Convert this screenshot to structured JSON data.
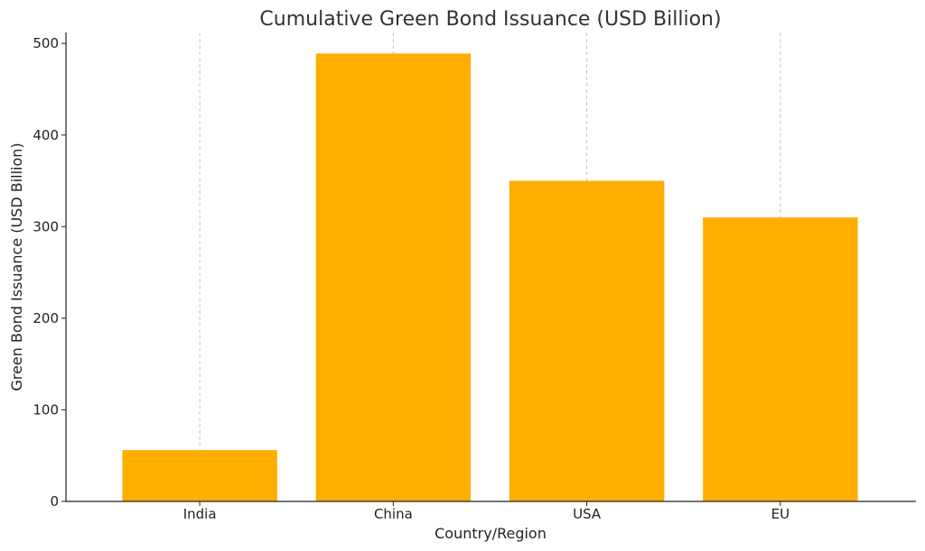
{
  "chart_data": {
    "type": "bar",
    "title": "Cumulative Green Bond Issuance (USD Billion)",
    "xlabel": "Country/Region",
    "ylabel": "Green Bond Issuance (USD Billion)",
    "categories": [
      "India",
      "China",
      "USA",
      "EU"
    ],
    "values": [
      56,
      489,
      350,
      310
    ],
    "ylim": [
      0,
      512
    ],
    "yticks": [
      "0",
      "100",
      "200",
      "300",
      "400",
      "500"
    ],
    "bar_color": "#FFAE00",
    "grid": "x-axis dashed",
    "legend": "none"
  }
}
